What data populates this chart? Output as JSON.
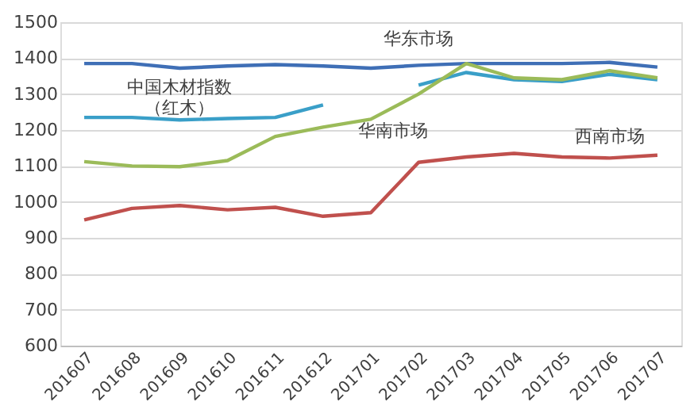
{
  "chart_data": {
    "type": "line",
    "categories": [
      "201607",
      "201608",
      "201609",
      "201610",
      "201611",
      "201612",
      "201701",
      "201702",
      "201703",
      "201704",
      "201705",
      "201706",
      "201707"
    ],
    "series": [
      {
        "name": "华东市场",
        "color": "#3f6fb6",
        "values": [
          1385,
          1385,
          1372,
          1378,
          1382,
          1378,
          1372,
          1380,
          1385,
          1385,
          1385,
          1388,
          1375
        ]
      },
      {
        "name": "中国木材指数（红木）",
        "color": "#3a9fc8",
        "values": [
          1235,
          1235,
          1228,
          1232,
          1235,
          1270,
          null,
          1325,
          1360,
          1340,
          1335,
          1355,
          1340
        ]
      },
      {
        "name": "华南市场",
        "color": "#9bbb59",
        "values": [
          1112,
          1100,
          1098,
          1115,
          1182,
          1208,
          1230,
          1300,
          1385,
          1345,
          1340,
          1365,
          1345
        ]
      },
      {
        "name": "西南市场",
        "color": "#c0504d",
        "values": [
          950,
          982,
          990,
          978,
          985,
          960,
          970,
          1110,
          1125,
          1135,
          1125,
          1122,
          1130
        ]
      }
    ],
    "ylim": [
      600,
      1500
    ],
    "yticks": [
      600,
      700,
      800,
      900,
      1000,
      1100,
      1200,
      1300,
      1400,
      1500
    ],
    "grid": "y",
    "legend": false,
    "marker": "none",
    "line_style": "solid"
  }
}
